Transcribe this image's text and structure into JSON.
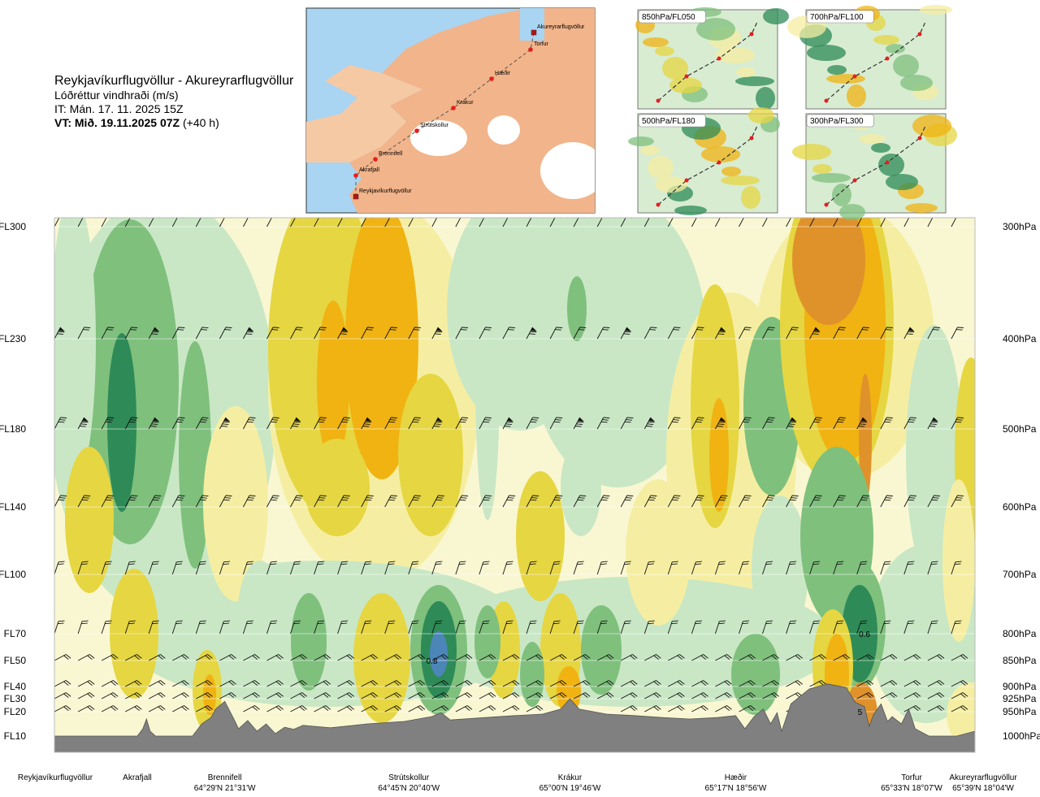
{
  "header": {
    "title": "Reykjavíkurflugvöllur - Akureyrarflugvöllur",
    "subtitle": "Lóðréttur vindhraði (m/s)",
    "issue_time": "IT: Mán. 17. 11. 2025 15Z",
    "valid_label": "VT: Mið. 19.11.2025 07Z",
    "valid_lead": "(+40 h)"
  },
  "route_map": {
    "waypoints": [
      "Reykjavíkurflugvöllur",
      "Akrafjall",
      "Brennifell",
      "Strútskollur",
      "Krákur",
      "Hæðir",
      "Torfur",
      "Akureyrarflugvöllur"
    ],
    "colors": {
      "land": "#f2b48a",
      "sea": "#a9d4f2",
      "ice": "#ffffff",
      "route": "#e81d1d"
    }
  },
  "thumbnails": [
    {
      "label": "850hPa/FL050"
    },
    {
      "label": "700hPa/FL100"
    },
    {
      "label": "500hPa/FL180"
    },
    {
      "label": "300hPa/FL300"
    }
  ],
  "chart_data": {
    "type": "heatmap",
    "quantity": "vertical wind speed (m/s)",
    "left_axis": {
      "ticks": [
        {
          "label": "FL300",
          "hpa": 300
        },
        {
          "label": "FL230",
          "hpa": 400
        },
        {
          "label": "FL180",
          "hpa": 500
        },
        {
          "label": "FL140",
          "hpa": 600
        },
        {
          "label": "FL100",
          "hpa": 700
        },
        {
          "label": "FL70",
          "hpa": 800
        },
        {
          "label": "FL50",
          "hpa": 850
        },
        {
          "label": "FL40",
          "hpa": 900
        },
        {
          "label": "FL30",
          "hpa": 925
        },
        {
          "label": "FL20",
          "hpa": 950
        },
        {
          "label": "FL10",
          "hpa": 1000
        }
      ]
    },
    "right_axis": {
      "ticks": [
        "300hPa",
        "400hPa",
        "500hPa",
        "600hPa",
        "700hPa",
        "800hPa",
        "850hPa",
        "900hPa",
        "925hPa",
        "950hPa",
        "1000hPa"
      ]
    },
    "ylim_hpa": [
      1000,
      300
    ],
    "x_range": [
      0,
      100
    ],
    "bottom_labels": [
      {
        "name": "Reykjavíkurflugvöllur",
        "coord": "",
        "x": 0
      },
      {
        "name": "Akrafjall",
        "coord": "",
        "x": 9
      },
      {
        "name": "Brennifell",
        "coord": "64°29'N 21°31'W",
        "x": 18.5
      },
      {
        "name": "Strútskollur",
        "coord": "64°45'N 20°40'W",
        "x": 38.5
      },
      {
        "name": "Krákur",
        "coord": "65°00'N 19°46'W",
        "x": 56
      },
      {
        "name": "Hæðir",
        "coord": "65°17'N 18°56'W",
        "x": 74
      },
      {
        "name": "Torfur",
        "coord": "65°33'N 18°07'W",
        "x": 94
      },
      {
        "name": "Akureyrarflugvöllur",
        "coord": "65°39'N 18°04'W",
        "x": 100
      }
    ],
    "annotations": [
      {
        "text": "0.8",
        "x": 41,
        "hpa": 850
      },
      {
        "text": "0.6",
        "x": 88,
        "hpa": 800
      },
      {
        "text": "5",
        "x": 87.5,
        "hpa": 950
      }
    ],
    "terrain_hpa": [
      [
        0,
        1000
      ],
      [
        9,
        1000
      ],
      [
        9.6,
        985
      ],
      [
        10,
        965
      ],
      [
        10.4,
        990
      ],
      [
        11,
        1000
      ],
      [
        15,
        1000
      ],
      [
        16,
        975
      ],
      [
        17,
        962
      ],
      [
        17.5,
        945
      ],
      [
        18.5,
        930
      ],
      [
        19.5,
        965
      ],
      [
        20,
        985
      ],
      [
        21,
        968
      ],
      [
        22,
        990
      ],
      [
        23,
        975
      ],
      [
        24,
        995
      ],
      [
        25,
        982
      ],
      [
        26,
        986
      ],
      [
        27,
        978
      ],
      [
        30,
        983
      ],
      [
        34,
        975
      ],
      [
        38,
        970
      ],
      [
        41,
        960
      ],
      [
        42,
        952
      ],
      [
        43,
        967
      ],
      [
        46,
        963
      ],
      [
        50,
        958
      ],
      [
        53,
        955
      ],
      [
        55,
        945
      ],
      [
        56,
        925
      ],
      [
        57,
        945
      ],
      [
        60,
        955
      ],
      [
        63,
        958
      ],
      [
        66,
        962
      ],
      [
        69,
        965
      ],
      [
        72,
        962
      ],
      [
        74,
        958
      ],
      [
        75,
        985
      ],
      [
        76,
        960
      ],
      [
        77,
        945
      ],
      [
        77.8,
        975
      ],
      [
        78.5,
        952
      ],
      [
        79,
        990
      ],
      [
        80,
        935
      ],
      [
        82,
        905
      ],
      [
        84,
        895
      ],
      [
        86,
        902
      ],
      [
        87,
        932
      ],
      [
        88,
        940
      ],
      [
        88.5,
        980
      ],
      [
        89,
        955
      ],
      [
        89.8,
        935
      ],
      [
        90.5,
        970
      ],
      [
        91,
        960
      ],
      [
        92,
        975
      ],
      [
        92.8,
        945
      ],
      [
        93.5,
        985
      ],
      [
        94,
        990
      ],
      [
        95,
        1000
      ],
      [
        98,
        1000
      ],
      [
        100,
        990
      ]
    ],
    "color_classes": {
      "strong_up": "#2e8b57",
      "moderate_up": "#7fc07d",
      "weak_up": "#c9e7c5",
      "neutral": "#f9f7d2",
      "weak_down": "#f5eea2",
      "moderate_down": "#e6d641",
      "strong_down": "#f0b312"
    }
  }
}
